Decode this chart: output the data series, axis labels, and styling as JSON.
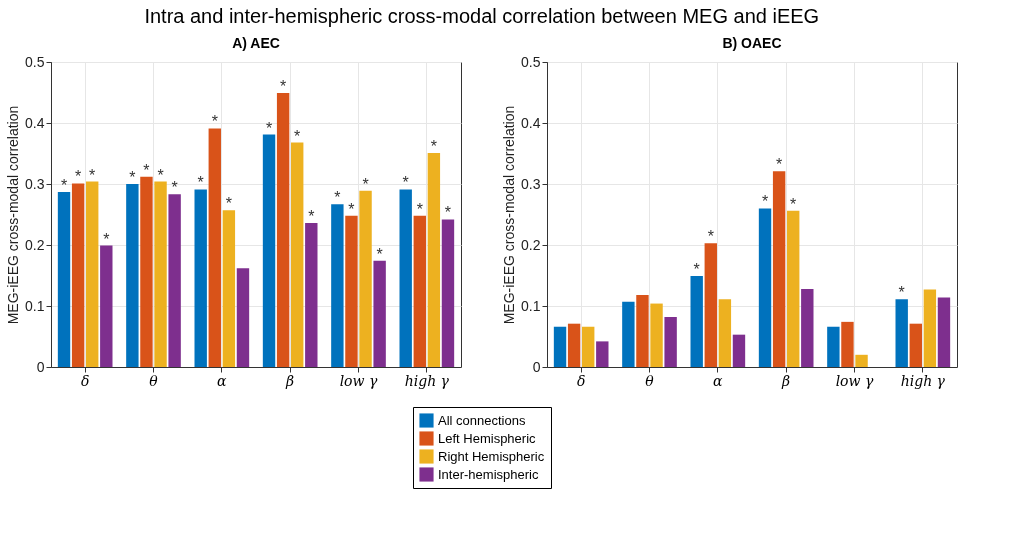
{
  "chart_data": [
    {
      "type": "bar",
      "title": "Intra and inter-hemispheric cross-modal correlation between MEG and iEEG",
      "subtitle": "A) AEC",
      "ylabel": "MEG-iEEG cross-modal correlation",
      "categories": [
        "δ",
        "θ",
        "α",
        "β",
        "low γ",
        "high γ"
      ],
      "ylim": [
        0,
        0.5
      ],
      "yticks": [
        0,
        0.1,
        0.2,
        0.3,
        0.4,
        0.5
      ],
      "grid": true,
      "legend": "bottom",
      "series": [
        {
          "name": "All connections",
          "color": "#0072bd",
          "values": [
            0.287,
            0.3,
            0.291,
            0.381,
            0.267,
            0.291
          ],
          "value_labels": [
            "*",
            "*",
            "*",
            "*",
            "*",
            "*"
          ]
        },
        {
          "name": "Left Hemispheric",
          "color": "#d95319",
          "values": [
            0.301,
            0.312,
            0.391,
            0.449,
            0.248,
            0.248
          ],
          "value_labels": [
            "*",
            "*",
            "*",
            "*",
            "*",
            "*"
          ]
        },
        {
          "name": "Right Hemispheric",
          "color": "#edb120",
          "values": [
            0.304,
            0.304,
            0.257,
            0.368,
            0.289,
            0.351
          ],
          "value_labels": [
            "*",
            "*",
            "*",
            "*",
            "*",
            "*"
          ]
        },
        {
          "name": "Inter-hemispheric",
          "color": "#7e2f8e",
          "values": [
            0.199,
            0.283,
            0.162,
            0.236,
            0.174,
            0.242
          ],
          "value_labels": [
            "*",
            "*",
            null,
            "*",
            "*",
            "*"
          ]
        }
      ]
    },
    {
      "type": "bar",
      "subtitle": "B) OAEC",
      "ylabel": "MEG-iEEG cross-modal correlation",
      "categories": [
        "δ",
        "θ",
        "α",
        "β",
        "low γ",
        "high γ"
      ],
      "ylim": [
        0,
        0.5
      ],
      "yticks": [
        0,
        0.1,
        0.2,
        0.3,
        0.4,
        0.5
      ],
      "grid": true,
      "legend": "bottom",
      "series": [
        {
          "name": "All connections",
          "color": "#0072bd",
          "values": [
            0.066,
            0.107,
            0.149,
            0.26,
            0.066,
            0.111
          ],
          "value_labels": [
            null,
            null,
            "*",
            "*",
            null,
            "*"
          ]
        },
        {
          "name": "Left Hemispheric",
          "color": "#d95319",
          "values": [
            0.071,
            0.118,
            0.203,
            0.321,
            0.074,
            0.071
          ],
          "value_labels": [
            null,
            null,
            "*",
            "*",
            null,
            null
          ]
        },
        {
          "name": "Right Hemispheric",
          "color": "#edb120",
          "values": [
            0.066,
            0.104,
            0.111,
            0.256,
            0.02,
            0.127
          ],
          "value_labels": [
            null,
            null,
            null,
            "*",
            null,
            null
          ]
        },
        {
          "name": "Inter-hemispheric",
          "color": "#7e2f8e",
          "values": [
            0.042,
            0.082,
            0.053,
            0.128,
            null,
            0.114
          ],
          "value_labels": [
            null,
            null,
            null,
            null,
            null,
            null
          ]
        }
      ]
    }
  ]
}
